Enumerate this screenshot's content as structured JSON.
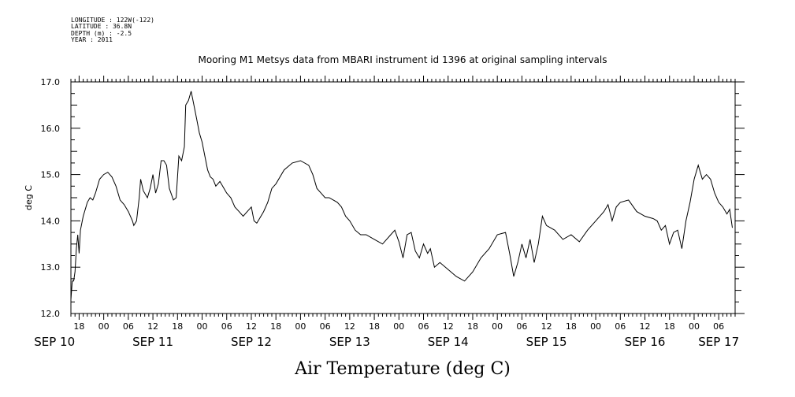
{
  "header": {
    "lines": [
      "LONGITUDE : 122W(-122)",
      "LATITUDE : 36.8N",
      "DEPTH (m) : -2.5",
      "YEAR : 2011"
    ]
  },
  "chart_data": {
    "type": "line",
    "title": "Mooring M1 Metsys data from MBARI instrument id 1396 at original sampling intervals",
    "ylabel": "deg C",
    "xlabel": "",
    "bottom_label": "Air Temperature (deg C)",
    "x_unit": "hours (Sep 2011)",
    "xlim": [
      "2011-09-10T16:00",
      "2011-09-17T10:00"
    ],
    "ylim": [
      12.0,
      17.0
    ],
    "y_ticks": [
      12.0,
      13.0,
      14.0,
      15.0,
      16.0,
      17.0
    ],
    "y_tick_labels": [
      "12.0",
      "13.0",
      "14.0",
      "15.0",
      "16.0",
      "17.0"
    ],
    "x_hour_labels": [
      {
        "t": "2011-09-10T18:00",
        "label": "18"
      },
      {
        "t": "2011-09-11T00:00",
        "label": "00"
      },
      {
        "t": "2011-09-11T06:00",
        "label": "06"
      },
      {
        "t": "2011-09-11T12:00",
        "label": "12"
      },
      {
        "t": "2011-09-11T18:00",
        "label": "18"
      },
      {
        "t": "2011-09-12T00:00",
        "label": "00"
      },
      {
        "t": "2011-09-12T06:00",
        "label": "06"
      },
      {
        "t": "2011-09-12T12:00",
        "label": "12"
      },
      {
        "t": "2011-09-12T18:00",
        "label": "18"
      },
      {
        "t": "2011-09-13T00:00",
        "label": "00"
      },
      {
        "t": "2011-09-13T06:00",
        "label": "06"
      },
      {
        "t": "2011-09-13T12:00",
        "label": "12"
      },
      {
        "t": "2011-09-13T18:00",
        "label": "18"
      },
      {
        "t": "2011-09-14T00:00",
        "label": "00"
      },
      {
        "t": "2011-09-14T06:00",
        "label": "06"
      },
      {
        "t": "2011-09-14T12:00",
        "label": "12"
      },
      {
        "t": "2011-09-14T18:00",
        "label": "18"
      },
      {
        "t": "2011-09-15T00:00",
        "label": "00"
      },
      {
        "t": "2011-09-15T06:00",
        "label": "06"
      },
      {
        "t": "2011-09-15T12:00",
        "label": "12"
      },
      {
        "t": "2011-09-15T18:00",
        "label": "18"
      },
      {
        "t": "2011-09-16T00:00",
        "label": "00"
      },
      {
        "t": "2011-09-16T06:00",
        "label": "06"
      },
      {
        "t": "2011-09-16T12:00",
        "label": "12"
      },
      {
        "t": "2011-09-16T18:00",
        "label": "18"
      },
      {
        "t": "2011-09-17T00:00",
        "label": "00"
      },
      {
        "t": "2011-09-17T06:00",
        "label": "06"
      }
    ],
    "x_day_labels": [
      {
        "t": "2011-09-10T12:00",
        "label": "SEP 10"
      },
      {
        "t": "2011-09-11T12:00",
        "label": "SEP 11"
      },
      {
        "t": "2011-09-12T12:00",
        "label": "SEP 12"
      },
      {
        "t": "2011-09-13T12:00",
        "label": "SEP 13"
      },
      {
        "t": "2011-09-14T12:00",
        "label": "SEP 14"
      },
      {
        "t": "2011-09-15T12:00",
        "label": "SEP 15"
      },
      {
        "t": "2011-09-16T12:00",
        "label": "SEP 16"
      },
      {
        "t": "2011-09-17T06:00",
        "label": "SEP 17"
      }
    ],
    "grid": false,
    "legend": "none",
    "series": [
      {
        "color": "#000000",
        "x": [
          "2011-09-10T16:00",
          "2011-09-10T16:20",
          "2011-09-10T16:40",
          "2011-09-10T17:00",
          "2011-09-10T17:20",
          "2011-09-10T17:40",
          "2011-09-10T18:00",
          "2011-09-10T18:20",
          "2011-09-10T19:00",
          "2011-09-10T19:40",
          "2011-09-10T20:00",
          "2011-09-10T20:40",
          "2011-09-10T21:20",
          "2011-09-10T22:00",
          "2011-09-10T23:00",
          "2011-09-11T00:00",
          "2011-09-11T01:00",
          "2011-09-11T02:00",
          "2011-09-11T03:00",
          "2011-09-11T04:00",
          "2011-09-11T05:00",
          "2011-09-11T06:00",
          "2011-09-11T07:00",
          "2011-09-11T07:20",
          "2011-09-11T08:00",
          "2011-09-11T08:40",
          "2011-09-11T09:00",
          "2011-09-11T09:40",
          "2011-09-11T10:40",
          "2011-09-11T11:20",
          "2011-09-11T12:00",
          "2011-09-11T12:40",
          "2011-09-11T13:20",
          "2011-09-11T14:00",
          "2011-09-11T14:40",
          "2011-09-11T15:20",
          "2011-09-11T16:00",
          "2011-09-11T17:00",
          "2011-09-11T17:40",
          "2011-09-11T18:20",
          "2011-09-11T19:00",
          "2011-09-11T19:40",
          "2011-09-11T20:00",
          "2011-09-11T20:40",
          "2011-09-11T21:00",
          "2011-09-11T21:20",
          "2011-09-11T22:00",
          "2011-09-11T22:40",
          "2011-09-11T23:20",
          "2011-09-12T00:00",
          "2011-09-12T00:40",
          "2011-09-12T01:20",
          "2011-09-12T02:00",
          "2011-09-12T02:40",
          "2011-09-12T03:20",
          "2011-09-12T04:20",
          "2011-09-12T05:20",
          "2011-09-12T06:00",
          "2011-09-12T07:00",
          "2011-09-12T08:00",
          "2011-09-12T09:00",
          "2011-09-12T10:00",
          "2011-09-12T11:00",
          "2011-09-12T12:00",
          "2011-09-12T12:40",
          "2011-09-12T13:20",
          "2011-09-12T14:00",
          "2011-09-12T15:00",
          "2011-09-12T16:00",
          "2011-09-12T17:00",
          "2011-09-12T18:00",
          "2011-09-12T20:00",
          "2011-09-12T22:00",
          "2011-09-13T00:00",
          "2011-09-13T02:00",
          "2011-09-13T03:00",
          "2011-09-13T04:00",
          "2011-09-13T05:00",
          "2011-09-13T06:00",
          "2011-09-13T07:00",
          "2011-09-13T08:00",
          "2011-09-13T09:00",
          "2011-09-13T10:00",
          "2011-09-13T11:00",
          "2011-09-13T12:00",
          "2011-09-13T13:20",
          "2011-09-13T14:40",
          "2011-09-13T16:00",
          "2011-09-13T18:00",
          "2011-09-13T20:00",
          "2011-09-13T22:00",
          "2011-09-13T23:00",
          "2011-09-14T00:00",
          "2011-09-14T01:00",
          "2011-09-14T02:00",
          "2011-09-14T03:00",
          "2011-09-14T04:00",
          "2011-09-14T05:00",
          "2011-09-14T06:00",
          "2011-09-14T07:00",
          "2011-09-14T07:40",
          "2011-09-14T08:40",
          "2011-09-14T10:00",
          "2011-09-14T12:00",
          "2011-09-14T14:00",
          "2011-09-14T16:00",
          "2011-09-14T18:00",
          "2011-09-14T20:00",
          "2011-09-14T22:00",
          "2011-09-15T00:00",
          "2011-09-15T02:00",
          "2011-09-15T03:00",
          "2011-09-15T04:00",
          "2011-09-15T05:00",
          "2011-09-15T06:00",
          "2011-09-15T07:00",
          "2011-09-15T08:00",
          "2011-09-15T09:00",
          "2011-09-15T10:00",
          "2011-09-15T11:00",
          "2011-09-15T12:00",
          "2011-09-15T14:00",
          "2011-09-15T16:00",
          "2011-09-15T18:00",
          "2011-09-15T20:00",
          "2011-09-15T22:00",
          "2011-09-16T00:00",
          "2011-09-16T02:00",
          "2011-09-16T03:00",
          "2011-09-16T04:00",
          "2011-09-16T05:00",
          "2011-09-16T06:00",
          "2011-09-16T08:00",
          "2011-09-16T10:00",
          "2011-09-16T12:00",
          "2011-09-16T14:00",
          "2011-09-16T15:00",
          "2011-09-16T16:00",
          "2011-09-16T17:00",
          "2011-09-16T18:00",
          "2011-09-16T19:00",
          "2011-09-16T20:00",
          "2011-09-16T21:00",
          "2011-09-16T22:00",
          "2011-09-16T23:00",
          "2011-09-17T00:00",
          "2011-09-17T01:00",
          "2011-09-17T02:00",
          "2011-09-17T03:00",
          "2011-09-17T04:00",
          "2011-09-17T05:00",
          "2011-09-17T06:00",
          "2011-09-17T07:00",
          "2011-09-17T08:00",
          "2011-09-17T08:40",
          "2011-09-17T09:00",
          "2011-09-17T09:20"
        ],
        "y": [
          12.3,
          12.7,
          12.7,
          12.9,
          13.4,
          13.7,
          13.3,
          13.8,
          14.1,
          14.3,
          14.4,
          14.5,
          14.45,
          14.6,
          14.9,
          15.0,
          15.05,
          14.95,
          14.75,
          14.45,
          14.35,
          14.2,
          14.0,
          13.9,
          14.0,
          14.5,
          14.9,
          14.65,
          14.5,
          14.7,
          15.0,
          14.6,
          14.8,
          15.3,
          15.3,
          15.2,
          14.7,
          14.45,
          14.5,
          15.4,
          15.3,
          15.6,
          16.5,
          16.6,
          16.7,
          16.8,
          16.5,
          16.2,
          15.9,
          15.7,
          15.4,
          15.1,
          14.95,
          14.9,
          14.75,
          14.85,
          14.7,
          14.6,
          14.5,
          14.3,
          14.2,
          14.1,
          14.2,
          14.3,
          14.0,
          13.95,
          14.05,
          14.2,
          14.4,
          14.7,
          14.8,
          15.1,
          15.25,
          15.3,
          15.2,
          15.0,
          14.7,
          14.6,
          14.5,
          14.5,
          14.45,
          14.4,
          14.3,
          14.1,
          14.0,
          13.8,
          13.7,
          13.7,
          13.6,
          13.5,
          13.7,
          13.8,
          13.55,
          13.2,
          13.7,
          13.75,
          13.35,
          13.2,
          13.5,
          13.3,
          13.4,
          13.0,
          13.1,
          12.95,
          12.8,
          12.7,
          12.9,
          13.2,
          13.4,
          13.7,
          13.75,
          13.3,
          12.8,
          13.1,
          13.5,
          13.2,
          13.6,
          13.1,
          13.5,
          14.1,
          13.9,
          13.8,
          13.6,
          13.7,
          13.55,
          13.8,
          14.0,
          14.2,
          14.35,
          14.0,
          14.3,
          14.4,
          14.45,
          14.2,
          14.1,
          14.05,
          14.0,
          13.8,
          13.9,
          13.5,
          13.75,
          13.8,
          13.4,
          14.0,
          14.4,
          14.9,
          15.2,
          14.9,
          15.0,
          14.9,
          14.6,
          14.4,
          14.3,
          14.15,
          14.25,
          14.05,
          13.85
        ]
      }
    ]
  }
}
